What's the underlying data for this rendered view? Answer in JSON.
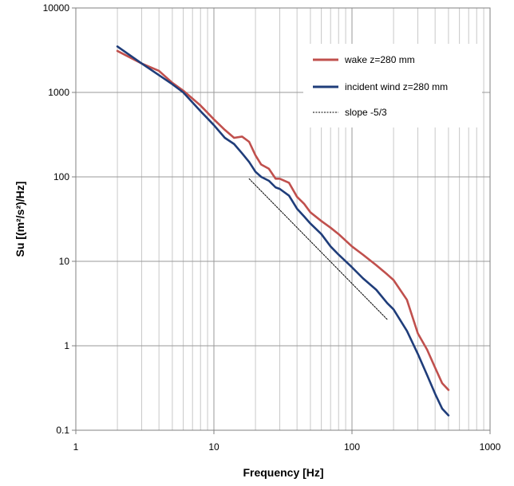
{
  "chart_data": {
    "type": "line",
    "title": "",
    "xlabel": "Frequency [Hz]",
    "ylabel": "Su [(m²/s²)/Hz]",
    "x_scale": "log",
    "y_scale": "log",
    "xlim": [
      1,
      1000
    ],
    "ylim": [
      0.1,
      10000
    ],
    "x_ticks": [
      1,
      10,
      100,
      1000
    ],
    "x_tick_labels": [
      "1",
      "10",
      "100",
      "1000"
    ],
    "y_ticks": [
      0.1,
      1,
      10,
      100,
      1000,
      10000
    ],
    "y_tick_labels": [
      "0.1",
      "1",
      "10",
      "100",
      "1000",
      "10000"
    ],
    "grid": "major and minor vertical, major horizontal",
    "legend_position": "top-right",
    "series": [
      {
        "name": "wake z=280 mm",
        "color": "#c0504d",
        "style": "solid",
        "x": [
          2,
          3,
          4,
          5,
          6,
          8,
          10,
          12,
          14,
          16,
          18,
          20,
          22,
          25,
          28,
          30,
          35,
          40,
          45,
          50,
          60,
          70,
          80,
          100,
          120,
          150,
          180,
          200,
          250,
          300,
          350,
          400,
          450,
          500
        ],
        "y": [
          3100,
          2200,
          1800,
          1300,
          1050,
          700,
          480,
          360,
          290,
          300,
          260,
          180,
          140,
          125,
          95,
          95,
          85,
          58,
          48,
          38,
          30,
          25,
          21,
          15,
          12,
          9,
          7,
          6,
          3.5,
          1.4,
          0.9,
          0.55,
          0.36,
          0.3
        ]
      },
      {
        "name": "incident wind z=280 mm",
        "color": "#1f3d7a",
        "style": "solid",
        "x": [
          2,
          3,
          4,
          5,
          6,
          8,
          10,
          12,
          14,
          16,
          18,
          20,
          22,
          25,
          28,
          30,
          35,
          40,
          45,
          50,
          60,
          70,
          80,
          100,
          120,
          150,
          180,
          200,
          250,
          300,
          350,
          400,
          450,
          500
        ],
        "y": [
          3500,
          2200,
          1600,
          1250,
          1000,
          600,
          410,
          290,
          245,
          190,
          150,
          115,
          100,
          90,
          75,
          72,
          60,
          42,
          34,
          28,
          21,
          15,
          12,
          8.5,
          6.3,
          4.6,
          3.2,
          2.7,
          1.5,
          0.8,
          0.45,
          0.27,
          0.18,
          0.15
        ]
      },
      {
        "name": "slope -5/3",
        "color": "#000000",
        "style": "dashed",
        "x": [
          18,
          180
        ],
        "y": [
          95,
          2.05
        ]
      }
    ]
  }
}
